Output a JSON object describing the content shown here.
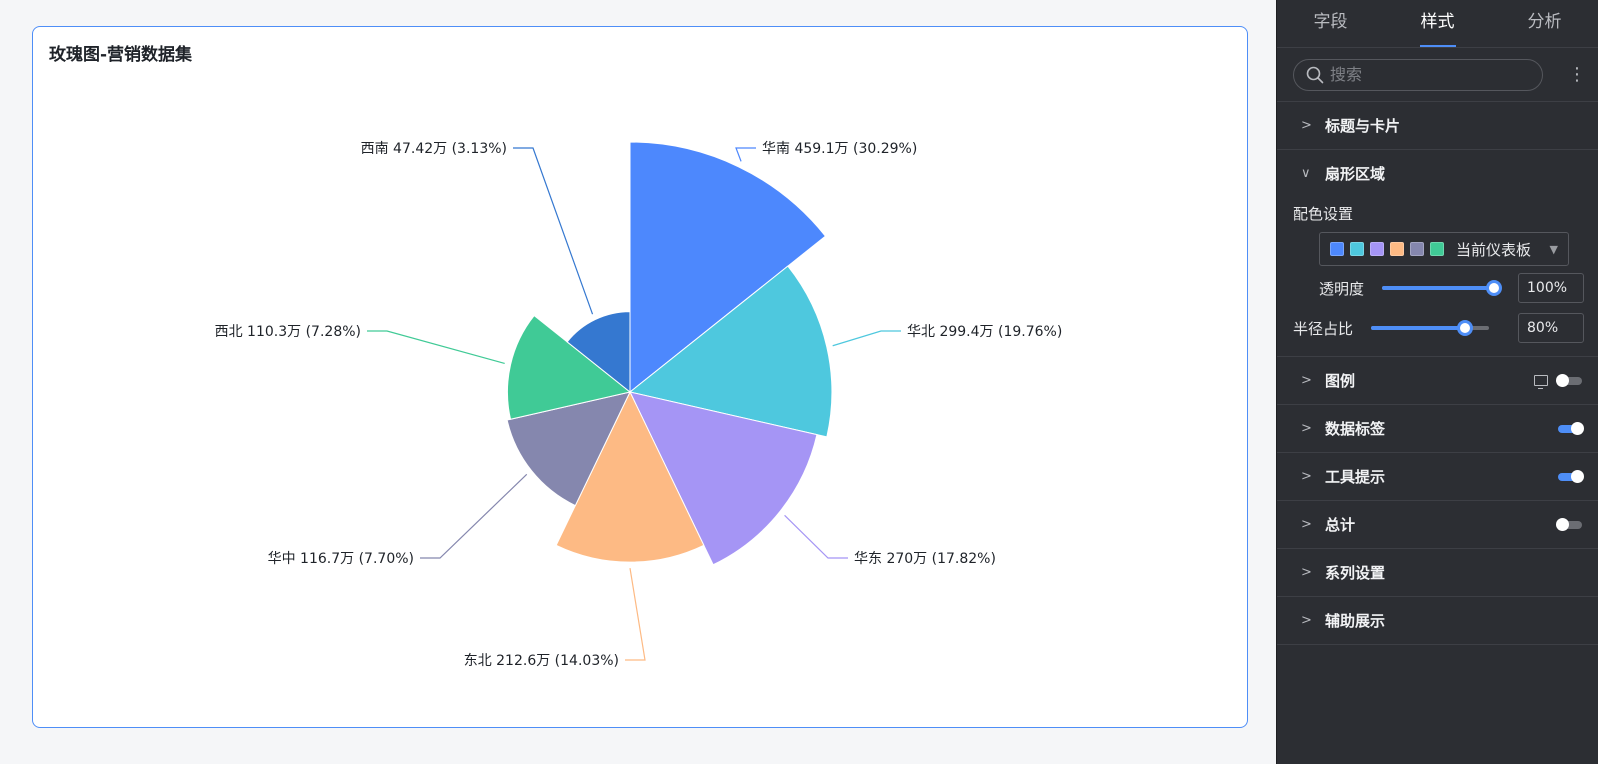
{
  "chart_data": {
    "type": "rose",
    "title": "玫瑰图-营销数据集",
    "categories": [
      "华南",
      "华北",
      "华东",
      "东北",
      "华中",
      "西北",
      "西南"
    ],
    "values": [
      459.1,
      299.4,
      270,
      212.6,
      116.7,
      110.3,
      47.42
    ],
    "value_labels": [
      "459.1万",
      "299.4万",
      "270万",
      "212.6万",
      "116.7万",
      "110.3万",
      "47.42万"
    ],
    "percent_labels": [
      "30.29%",
      "19.76%",
      "17.82%",
      "14.03%",
      "7.70%",
      "7.28%",
      "3.13%"
    ],
    "colors": [
      "#4d88fd",
      "#4ec8de",
      "#a595f5",
      "#fdba84",
      "#8587ae",
      "#40ca96",
      "#3578d0"
    ],
    "legend": "off",
    "data_labels": "on"
  },
  "panel": {
    "tabs": [
      "字段",
      "样式",
      "分析"
    ],
    "search_placeholder": "搜索",
    "sections": {
      "title_card": "标题与卡片",
      "sector_area": "扇形区域",
      "legend": "图例",
      "data_labels": "数据标签",
      "tooltip": "工具提示",
      "total": "总计",
      "series_settings": "系列设置",
      "auxiliary": "辅助展示"
    },
    "color_settings_label": "配色设置",
    "palette_name": "当前仪表板",
    "palette_swatches": [
      "#4d88fd",
      "#4ec8de",
      "#a595f5",
      "#fdba84",
      "#8587ae",
      "#40ca96"
    ],
    "opacity_label": "透明度",
    "opacity_value": "100%",
    "opacity_fraction": 1.0,
    "radius_label": "半径占比",
    "radius_value": "80%",
    "radius_fraction": 0.8,
    "toggles": {
      "legend": false,
      "data_labels": true,
      "tooltip": true,
      "total": false
    }
  }
}
